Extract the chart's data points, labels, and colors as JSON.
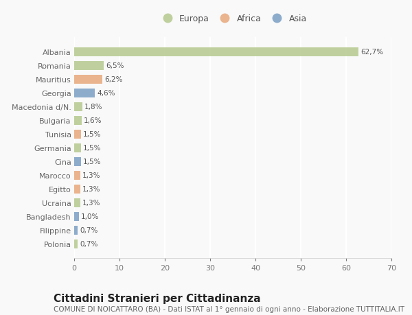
{
  "categories": [
    "Polonia",
    "Filippine",
    "Bangladesh",
    "Ucraina",
    "Egitto",
    "Marocco",
    "Cina",
    "Germania",
    "Tunisia",
    "Bulgaria",
    "Macedonia d/N.",
    "Georgia",
    "Mauritius",
    "Romania",
    "Albania"
  ],
  "values": [
    0.7,
    0.7,
    1.0,
    1.3,
    1.3,
    1.3,
    1.5,
    1.5,
    1.5,
    1.6,
    1.8,
    4.6,
    6.2,
    6.5,
    62.7
  ],
  "labels": [
    "0,7%",
    "0,7%",
    "1,0%",
    "1,3%",
    "1,3%",
    "1,3%",
    "1,5%",
    "1,5%",
    "1,5%",
    "1,6%",
    "1,8%",
    "4,6%",
    "6,2%",
    "6,5%",
    "62,7%"
  ],
  "bar_colors": {
    "Albania": "#b5c98e",
    "Romania": "#b5c98e",
    "Mauritius": "#e8a87c",
    "Georgia": "#7a9fc4",
    "Macedonia d/N.": "#b5c98e",
    "Bulgaria": "#b5c98e",
    "Tunisia": "#e8a87c",
    "Germania": "#b5c98e",
    "Cina": "#7a9fc4",
    "Marocco": "#e8a87c",
    "Egitto": "#e8a87c",
    "Ucraina": "#b5c98e",
    "Bangladesh": "#7a9fc4",
    "Filippine": "#7a9fc4",
    "Polonia": "#b5c98e"
  },
  "legend": {
    "Europa": "#b5c98e",
    "Africa": "#e8a87c",
    "Asia": "#7a9fc4"
  },
  "title": "Cittadini Stranieri per Cittadinanza",
  "subtitle": "COMUNE DI NOICATTARO (BA) - Dati ISTAT al 1° gennaio di ogni anno - Elaborazione TUTTITALIA.IT",
  "xlim": [
    0,
    70
  ],
  "xticks": [
    0,
    10,
    20,
    30,
    40,
    50,
    60,
    70
  ],
  "background_color": "#f9f9f9",
  "grid_color": "#ffffff",
  "bar_height": 0.65,
  "title_fontsize": 11,
  "subtitle_fontsize": 7.5,
  "label_fontsize": 7.5,
  "tick_fontsize": 8,
  "legend_fontsize": 9
}
